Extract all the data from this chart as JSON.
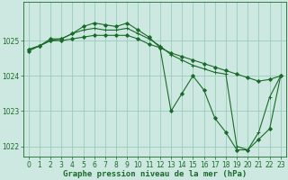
{
  "background_color": "#cce8e0",
  "grid_color": "#99ccbb",
  "line_color": "#1a6b2a",
  "xlabel": "Graphe pression niveau de la mer (hPa)",
  "xlabel_fontsize": 6.5,
  "tick_fontsize": 5.5,
  "xlim": [
    -0.5,
    23.5
  ],
  "ylim": [
    1021.7,
    1026.1
  ],
  "yticks": [
    1022,
    1023,
    1024,
    1025
  ],
  "xticks": [
    0,
    1,
    2,
    3,
    4,
    5,
    6,
    7,
    8,
    9,
    10,
    11,
    12,
    13,
    14,
    15,
    16,
    17,
    18,
    19,
    20,
    21,
    22,
    23
  ],
  "series": [
    {
      "x": [
        0,
        1,
        2,
        3,
        4,
        5,
        6,
        7,
        8,
        9,
        10,
        11,
        12,
        13,
        14,
        15,
        16,
        17,
        18,
        19,
        20,
        21,
        22,
        23
      ],
      "y": [
        1024.75,
        1024.85,
        1025.0,
        1025.0,
        1025.05,
        1025.1,
        1025.15,
        1025.15,
        1025.15,
        1025.15,
        1025.05,
        1024.9,
        1024.8,
        1024.65,
        1024.55,
        1024.45,
        1024.35,
        1024.25,
        1024.15,
        1024.05,
        1023.95,
        1023.85,
        1023.9,
        1024.0
      ],
      "marker": "D",
      "markersize": 2.0,
      "linewidth": 0.8
    },
    {
      "x": [
        0,
        1,
        2,
        3,
        4,
        5,
        6,
        7,
        8,
        9,
        10,
        11,
        12,
        13,
        14,
        15,
        16,
        17,
        18,
        19,
        20,
        21,
        22,
        23
      ],
      "y": [
        1024.75,
        1024.85,
        1025.0,
        1025.05,
        1025.2,
        1025.3,
        1025.35,
        1025.3,
        1025.3,
        1025.35,
        1025.2,
        1025.05,
        1024.85,
        1024.6,
        1024.45,
        1024.3,
        1024.2,
        1024.1,
        1024.05,
        1022.0,
        1021.9,
        1022.4,
        1023.4,
        1024.0
      ],
      "marker": "+",
      "markersize": 3.5,
      "linewidth": 0.8
    },
    {
      "x": [
        0,
        1,
        2,
        3,
        4,
        5,
        6,
        7,
        8,
        9,
        10,
        11,
        12,
        13,
        14,
        15,
        16,
        17,
        18,
        19,
        20,
        21,
        22,
        23
      ],
      "y": [
        1024.7,
        1024.85,
        1025.05,
        1025.05,
        1025.2,
        1025.4,
        1025.5,
        1025.45,
        1025.4,
        1025.5,
        1025.3,
        1025.1,
        1024.8,
        1023.0,
        1023.5,
        1024.0,
        1023.6,
        1022.8,
        1022.4,
        1021.9,
        1021.9,
        1022.2,
        1022.5,
        1024.0
      ],
      "marker": "D",
      "markersize": 2.0,
      "linewidth": 0.8
    }
  ],
  "figsize": [
    3.2,
    2.0
  ],
  "dpi": 100
}
